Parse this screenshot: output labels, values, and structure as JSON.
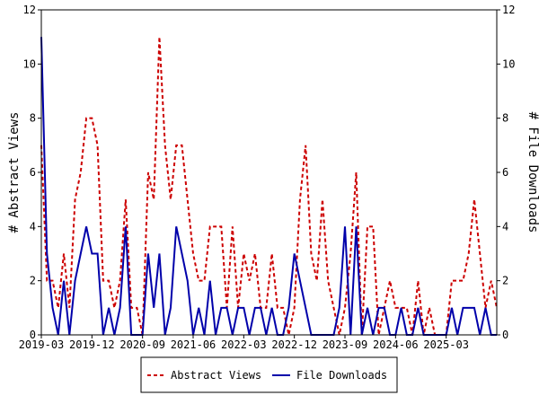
{
  "chart_data": {
    "type": "line",
    "ylabel_left": "# Abstract Views",
    "ylabel_right": "# File Downloads",
    "ylim": [
      0,
      12
    ],
    "yticks": [
      "0",
      "2",
      "4",
      "6",
      "8",
      "10",
      "12"
    ],
    "xticks": [
      "2019-03",
      "2019-12",
      "2020-09",
      "2021-06",
      "2022-03",
      "2022-12",
      "2023-09",
      "2024-06",
      "2025-03"
    ],
    "series": [
      {
        "name": "Abstract Views",
        "color": "#cc0000",
        "style": "dashed",
        "values": [
          7,
          2,
          2,
          1,
          3,
          1,
          5,
          6,
          8,
          8,
          7,
          2,
          2,
          1,
          2,
          5,
          1,
          1,
          0,
          6,
          5,
          11,
          7,
          5,
          7,
          7,
          5,
          3,
          2,
          2,
          4,
          4,
          4,
          1,
          4,
          1,
          3,
          2,
          3,
          1,
          1,
          3,
          1,
          1,
          0,
          1,
          5,
          7,
          3,
          2,
          5,
          2,
          1,
          0,
          1,
          3,
          6,
          0,
          4,
          4,
          0,
          1,
          2,
          1,
          1,
          1,
          0,
          2,
          0,
          1,
          0,
          0,
          0,
          2,
          2,
          2,
          3,
          5,
          3,
          1,
          2,
          1
        ]
      },
      {
        "name": "File Downloads",
        "color": "#0000aa",
        "style": "solid",
        "values": [
          11,
          3,
          1,
          0,
          2,
          0,
          2,
          3,
          4,
          3,
          3,
          0,
          1,
          0,
          1,
          4,
          0,
          0,
          0,
          3,
          1,
          3,
          0,
          1,
          4,
          3,
          2,
          0,
          1,
          0,
          2,
          0,
          1,
          1,
          0,
          1,
          1,
          0,
          1,
          1,
          0,
          1,
          0,
          0,
          1,
          3,
          2,
          1,
          0,
          0,
          0,
          0,
          0,
          1,
          4,
          0,
          4,
          0,
          1,
          0,
          1,
          1,
          0,
          0,
          1,
          0,
          0,
          1,
          0,
          0,
          0,
          0,
          0,
          1,
          0,
          1,
          1,
          1,
          0,
          1,
          0,
          0
        ]
      }
    ],
    "legend_position": "bottom-center",
    "grid": false
  }
}
